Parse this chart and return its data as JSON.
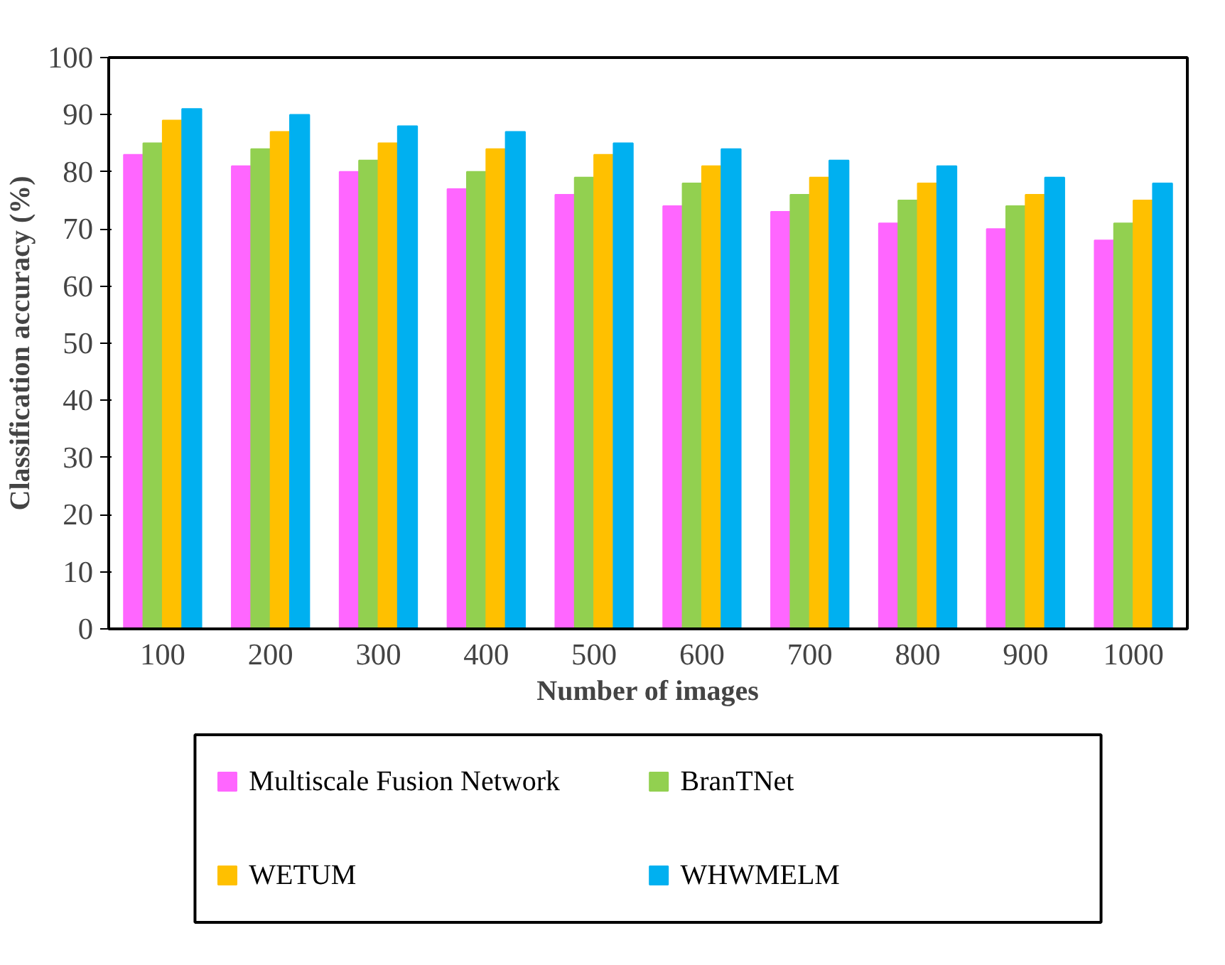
{
  "chart_data": {
    "type": "bar",
    "xlabel": "Number of images",
    "ylabel": "Classification accuracy (%)",
    "categories": [
      "100",
      "200",
      "300",
      "400",
      "500",
      "600",
      "700",
      "800",
      "900",
      "1000"
    ],
    "series": [
      {
        "name": "Multiscale Fusion Network",
        "color": "#ff66ff",
        "values": [
          83,
          81,
          80,
          77,
          76,
          74,
          73,
          71,
          70,
          68
        ]
      },
      {
        "name": "BranTNet",
        "color": "#92d050",
        "values": [
          85,
          84,
          82,
          80,
          79,
          78,
          76,
          75,
          74,
          71
        ]
      },
      {
        "name": "WETUM",
        "color": "#ffc000",
        "values": [
          89,
          87,
          85,
          84,
          83,
          81,
          79,
          78,
          76,
          75
        ]
      },
      {
        "name": "WHWMELM",
        "color": "#00b0f0",
        "values": [
          91,
          90,
          88,
          87,
          85,
          84,
          82,
          81,
          79,
          78
        ]
      }
    ],
    "ylim": [
      0,
      100
    ],
    "yticks": [
      0,
      10,
      20,
      30,
      40,
      50,
      60,
      70,
      80,
      90,
      100
    ],
    "grid": false,
    "legend": "bottom"
  }
}
